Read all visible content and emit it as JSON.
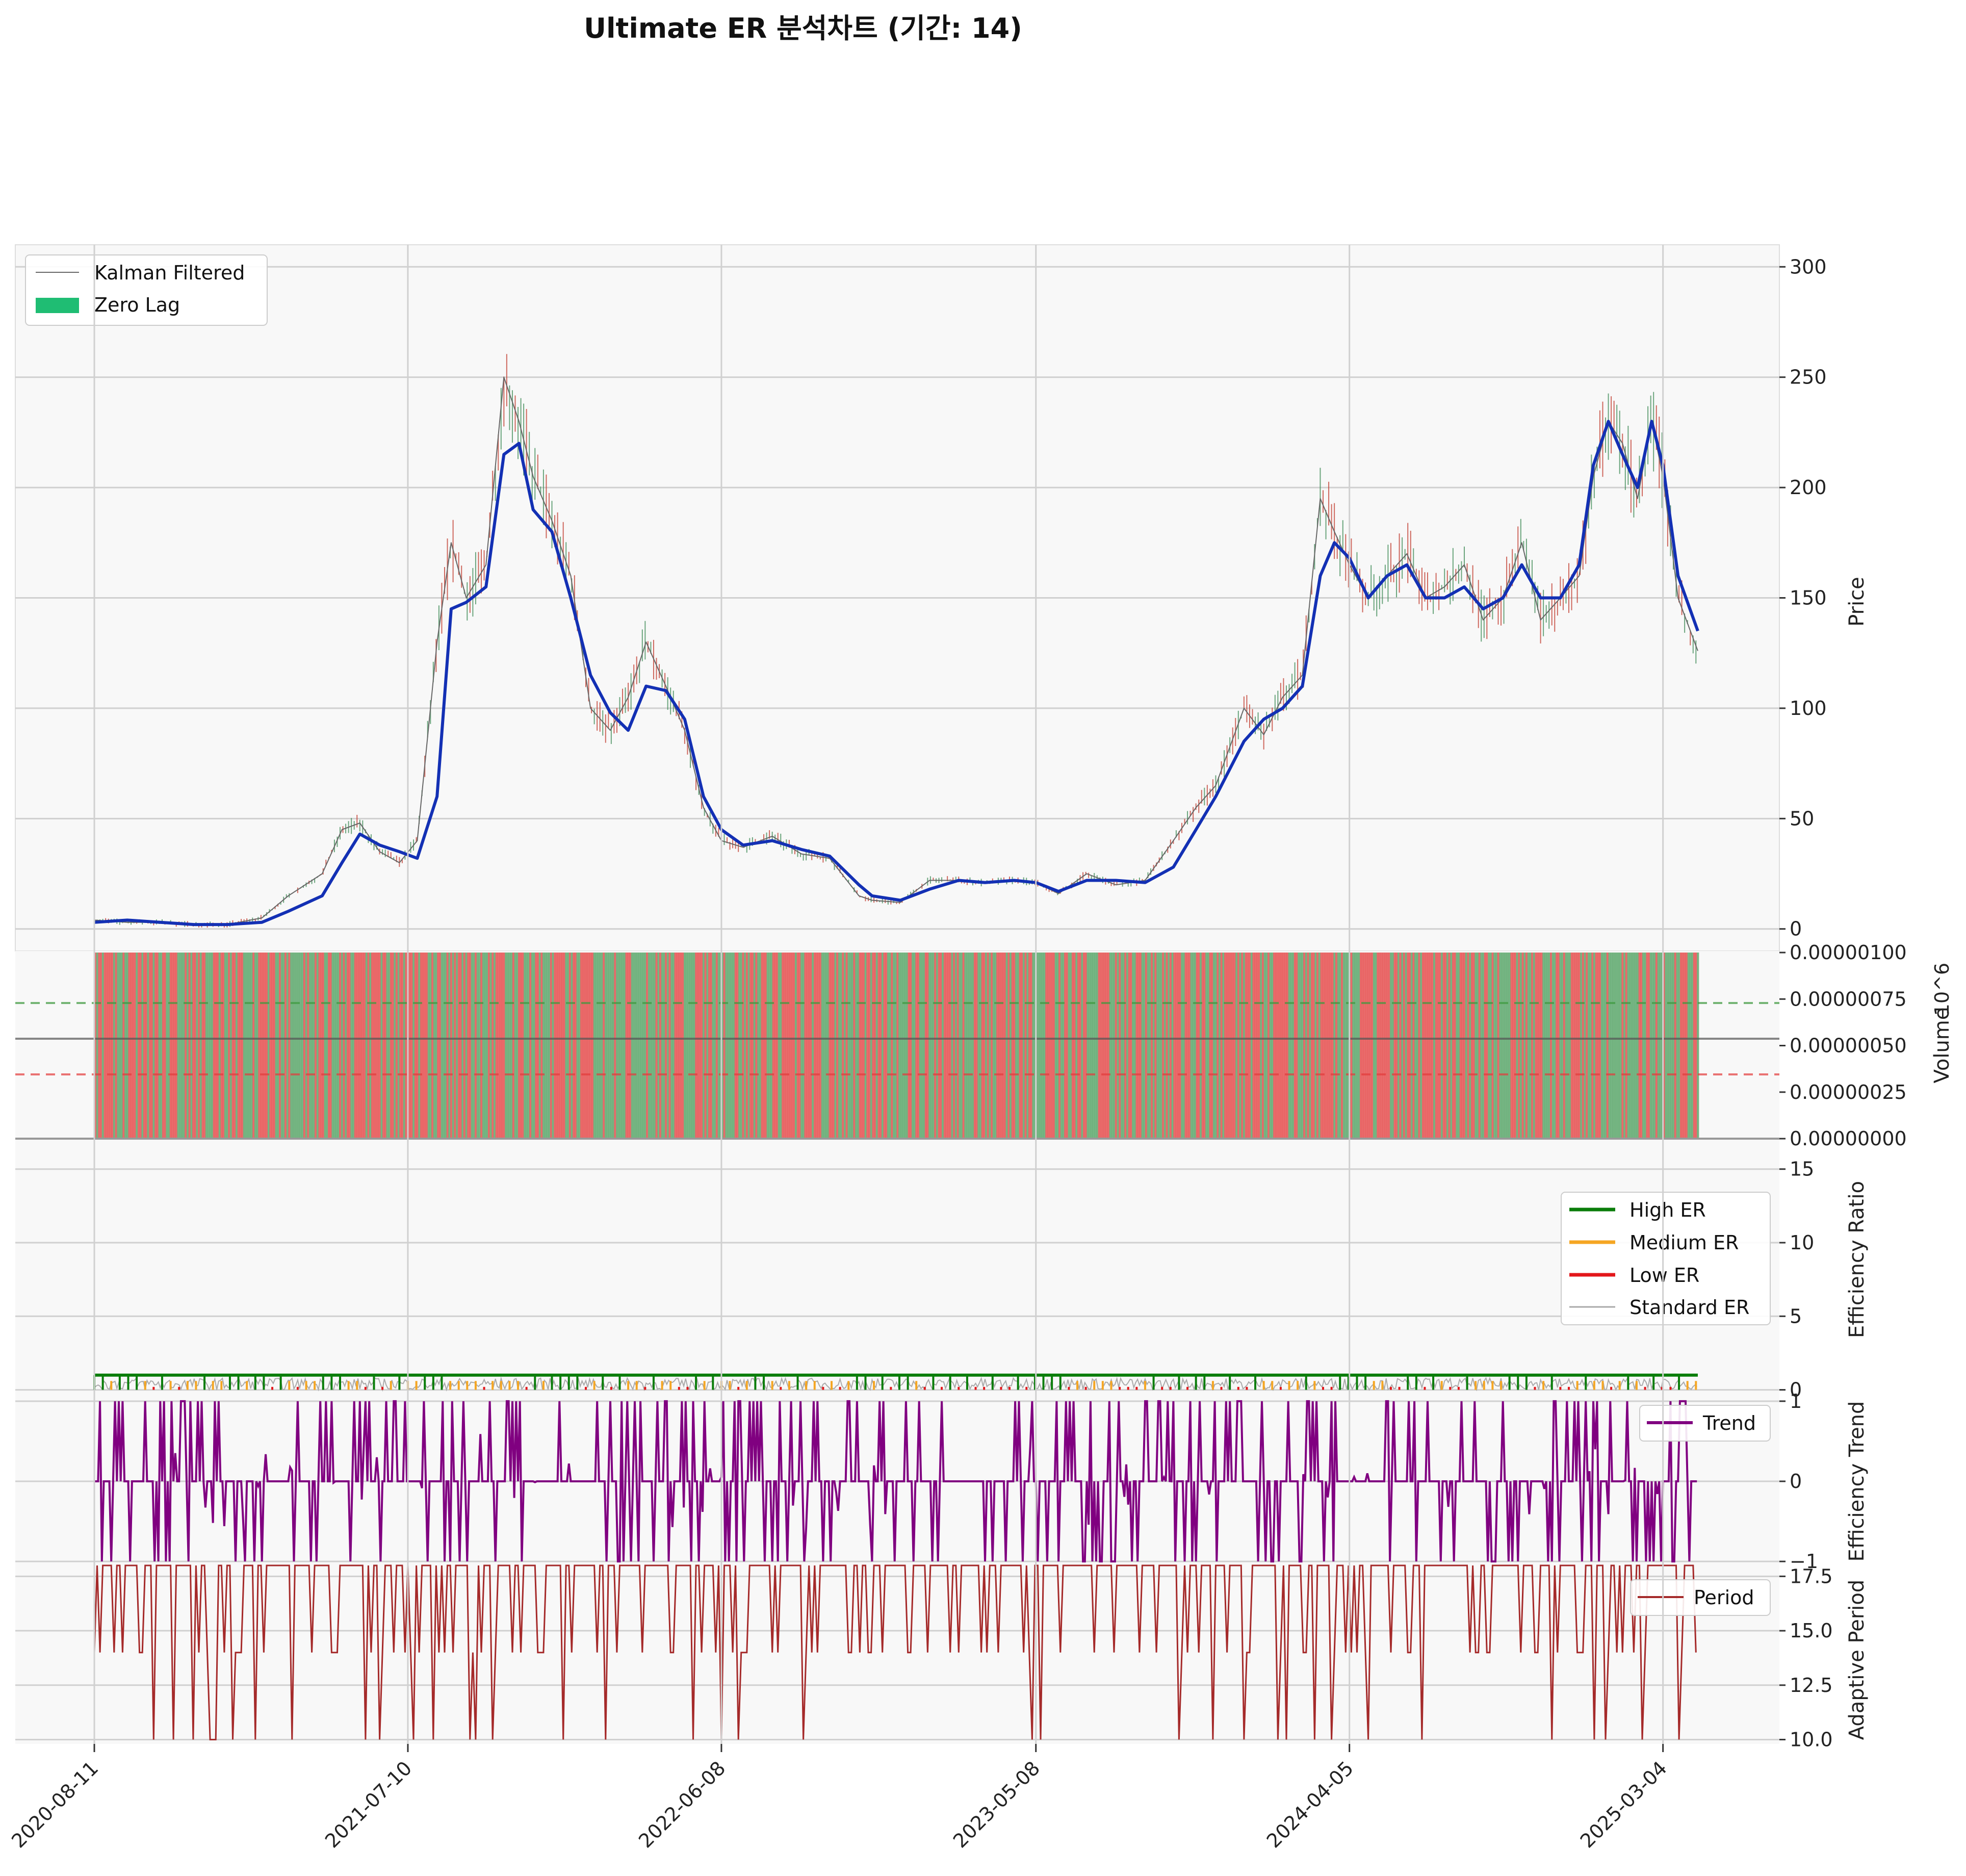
{
  "title": "Ultimate ER 분석차트 (기간: 14)",
  "colors": {
    "panel_bg": "#f8f8f8",
    "grid": "#cccccc",
    "price_line": "#1330b4",
    "kalman": "#666666",
    "zero_lag": "#1fbd73",
    "high_er": "#0a7d0a",
    "medium_er": "#f5a623",
    "low_er": "#e3171b",
    "standard_er": "#aaaaaa",
    "trend": "#800080",
    "period": "#a52a2a",
    "volume_green": "#5fa96f",
    "volume_red": "#e65252"
  },
  "x_axis": {
    "start": "2020-08-11",
    "end": "2025-04-10",
    "ticks": [
      "2020-08-11",
      "2021-07-10",
      "2022-06-08",
      "2023-05-08",
      "2024-04-05",
      "2025-03-04"
    ]
  },
  "panels": {
    "price": {
      "ylabel": "Price",
      "ticks": [
        "0",
        "50",
        "100",
        "150",
        "200",
        "250",
        "300"
      ],
      "legend": [
        "Kalman Filtered",
        "Zero Lag"
      ]
    },
    "volume": {
      "ylabel": "Volume",
      "exponent": "10^6",
      "ticks": [
        "0.00000000",
        "0.00000025",
        "0.00000050",
        "0.00000075",
        "0.00000100"
      ]
    },
    "efficiency": {
      "ylabel": "Efficiency Ratio",
      "ticks": [
        "0",
        "5",
        "10",
        "15"
      ],
      "legend": [
        "High ER",
        "Medium ER",
        "Low ER",
        "Standard ER"
      ]
    },
    "trend": {
      "ylabel": "Efficiency Trend",
      "ticks": [
        "−1",
        "0",
        "1"
      ],
      "legend": [
        "Trend"
      ]
    },
    "period": {
      "ylabel": "Adaptive Period",
      "ticks": [
        "10.0",
        "12.5",
        "15.0",
        "17.5"
      ],
      "legend": [
        "Period"
      ]
    }
  },
  "chart_data": [
    {
      "type": "line",
      "panel": "price",
      "title": "Ultimate ER 분석차트 (기간: 14)",
      "ylabel": "Price",
      "ylim": [
        -10,
        310
      ],
      "series": [
        {
          "name": "Kalman Filtered",
          "x": [
            "2020-08-11",
            "2020-09-15",
            "2020-10-20",
            "2020-11-25",
            "2020-12-30",
            "2021-02-05",
            "2021-03-05",
            "2021-04-10",
            "2021-05-01",
            "2021-05-20",
            "2021-06-10",
            "2021-07-01",
            "2021-07-20",
            "2021-08-10",
            "2021-08-25",
            "2021-09-10",
            "2021-10-01",
            "2021-10-20",
            "2021-11-05",
            "2021-11-20",
            "2021-12-10",
            "2021-12-30",
            "2022-01-20",
            "2022-02-10",
            "2022-03-01",
            "2022-03-20",
            "2022-04-10",
            "2022-04-30",
            "2022-05-20",
            "2022-06-08",
            "2022-07-01",
            "2022-08-01",
            "2022-09-01",
            "2022-10-01",
            "2022-11-01",
            "2022-11-15",
            "2022-12-15",
            "2023-01-15",
            "2023-02-15",
            "2023-03-15",
            "2023-04-15",
            "2023-05-08",
            "2023-06-01",
            "2023-07-01",
            "2023-08-01",
            "2023-09-01",
            "2023-10-01",
            "2023-10-25",
            "2023-11-15",
            "2023-12-15",
            "2024-01-05",
            "2024-01-25",
            "2024-02-15",
            "2024-03-05",
            "2024-03-20",
            "2024-04-05",
            "2024-04-25",
            "2024-05-15",
            "2024-06-05",
            "2024-06-25",
            "2024-07-15",
            "2024-08-05",
            "2024-08-25",
            "2024-09-15",
            "2024-10-05",
            "2024-10-25",
            "2024-11-15",
            "2024-12-05",
            "2024-12-20",
            "2025-01-05",
            "2025-01-20",
            "2025-02-05",
            "2025-02-20",
            "2025-03-04",
            "2025-03-20",
            "2025-04-10"
          ],
          "values": [
            4,
            3,
            3,
            2,
            2,
            5,
            15,
            25,
            45,
            48,
            35,
            30,
            40,
            130,
            175,
            150,
            165,
            250,
            230,
            205,
            185,
            160,
            100,
            90,
            105,
            130,
            110,
            90,
            55,
            40,
            37,
            42,
            34,
            32,
            15,
            13,
            12,
            22,
            22,
            21,
            22,
            21,
            16,
            25,
            20,
            22,
            40,
            55,
            65,
            100,
            88,
            105,
            115,
            195,
            180,
            165,
            150,
            160,
            170,
            150,
            155,
            165,
            140,
            150,
            175,
            140,
            150,
            160,
            205,
            230,
            220,
            195,
            230,
            205,
            150,
            126
          ]
        },
        {
          "name": "Zero Lag",
          "x": [
            "2020-08-11",
            "2020-09-15",
            "2020-10-20",
            "2020-11-25",
            "2020-12-30",
            "2021-02-05",
            "2021-03-05",
            "2021-04-10",
            "2021-05-01",
            "2021-05-20",
            "2021-06-10",
            "2021-07-01",
            "2021-07-20",
            "2021-08-10",
            "2021-08-25",
            "2021-09-10",
            "2021-10-01",
            "2021-10-20",
            "2021-11-05",
            "2021-11-20",
            "2021-12-10",
            "2021-12-30",
            "2022-01-20",
            "2022-02-10",
            "2022-03-01",
            "2022-03-20",
            "2022-04-10",
            "2022-04-30",
            "2022-05-20",
            "2022-06-08",
            "2022-07-01",
            "2022-08-01",
            "2022-09-01",
            "2022-10-01",
            "2022-11-01",
            "2022-11-15",
            "2022-12-15",
            "2023-01-15",
            "2023-02-15",
            "2023-03-15",
            "2023-04-15",
            "2023-05-08",
            "2023-06-01",
            "2023-07-01",
            "2023-08-01",
            "2023-09-01",
            "2023-10-01",
            "2023-10-25",
            "2023-11-15",
            "2023-12-15",
            "2024-01-05",
            "2024-01-25",
            "2024-02-15",
            "2024-03-05",
            "2024-03-20",
            "2024-04-05",
            "2024-04-25",
            "2024-05-15",
            "2024-06-05",
            "2024-06-25",
            "2024-07-15",
            "2024-08-05",
            "2024-08-25",
            "2024-09-15",
            "2024-10-05",
            "2024-10-25",
            "2024-11-15",
            "2024-12-05",
            "2024-12-20",
            "2025-01-05",
            "2025-01-20",
            "2025-02-05",
            "2025-02-20",
            "2025-03-04",
            "2025-03-20",
            "2025-04-10"
          ],
          "values": [
            3,
            4,
            3,
            2,
            2,
            3,
            8,
            15,
            30,
            43,
            38,
            35,
            32,
            60,
            145,
            148,
            155,
            215,
            220,
            190,
            180,
            150,
            115,
            98,
            90,
            110,
            108,
            95,
            60,
            45,
            38,
            40,
            36,
            33,
            20,
            15,
            13,
            18,
            22,
            21,
            22,
            21,
            17,
            22,
            22,
            21,
            28,
            45,
            60,
            85,
            95,
            100,
            110,
            160,
            175,
            168,
            150,
            160,
            165,
            150,
            150,
            155,
            145,
            150,
            165,
            150,
            150,
            165,
            210,
            230,
            215,
            200,
            230,
            210,
            160,
            135
          ]
        }
      ]
    },
    {
      "type": "bar",
      "panel": "volume",
      "ylabel": "Volume",
      "ylim": [
        0,
        1
      ],
      "value_unit": "×10^-6 (relative)",
      "reference_lines": [
        0.3,
        0.5,
        0.7
      ],
      "series": [
        {
          "name": "",
          "value": 1.0
        }
      ]
    },
    {
      "type": "line",
      "panel": "efficiency",
      "ylabel": "Efficiency Ratio",
      "ylim": [
        -0.5,
        17
      ],
      "series": [
        {
          "name": "High ER",
          "value": 1.0
        },
        {
          "name": "Medium ER",
          "value": 0.6
        },
        {
          "name": "Low ER",
          "value": 0.2
        },
        {
          "name": "Standard ER",
          "range": [
            0,
            0.8
          ]
        }
      ]
    },
    {
      "type": "line",
      "panel": "trend",
      "ylabel": "Efficiency Trend",
      "ylim": [
        -1.05,
        1.05
      ],
      "series": [
        {
          "name": "Trend",
          "values_domain": [
            -1,
            0,
            1
          ]
        }
      ]
    },
    {
      "type": "line",
      "panel": "period",
      "ylabel": "Adaptive Period",
      "ylim": [
        9.8,
        18.0
      ],
      "series": [
        {
          "name": "Period",
          "values_domain": [
            10,
            14,
            18
          ]
        }
      ]
    }
  ]
}
